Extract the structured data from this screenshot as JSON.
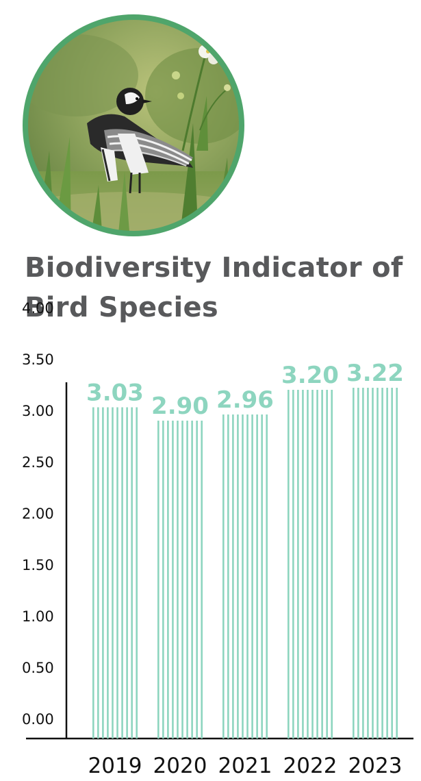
{
  "title": "Biodiversity Indicator of Bird Species",
  "photo": {
    "subject": "bird-photo",
    "colors": {
      "border": "#4fa56b",
      "background": "#8aa05a",
      "bird_dark": "#2a2a2a",
      "bird_light": "#f2f2f2"
    }
  },
  "colors": {
    "bar": "#8dd5bf",
    "label": "#8dd5bf",
    "axis": "#111111",
    "title": "#58595b"
  },
  "chart_data": {
    "type": "bar",
    "title": "Biodiversity Indicator of Bird Species",
    "xlabel": "",
    "ylabel": "",
    "categories": [
      "2019",
      "2020",
      "2021",
      "2022",
      "2023"
    ],
    "values": [
      3.03,
      2.9,
      2.96,
      3.2,
      3.22
    ],
    "value_labels": [
      "3.03",
      "2.90",
      "2.96",
      "3.20",
      "3.22"
    ],
    "ylim": [
      0,
      4.0
    ],
    "yticks": [
      "0.00",
      "0.50",
      "1.00",
      "1.50",
      "2.00",
      "2.50",
      "3.00",
      "3.50",
      "4.00"
    ],
    "grid": false,
    "legend": "none",
    "bar_style": "vertical-stripes"
  }
}
